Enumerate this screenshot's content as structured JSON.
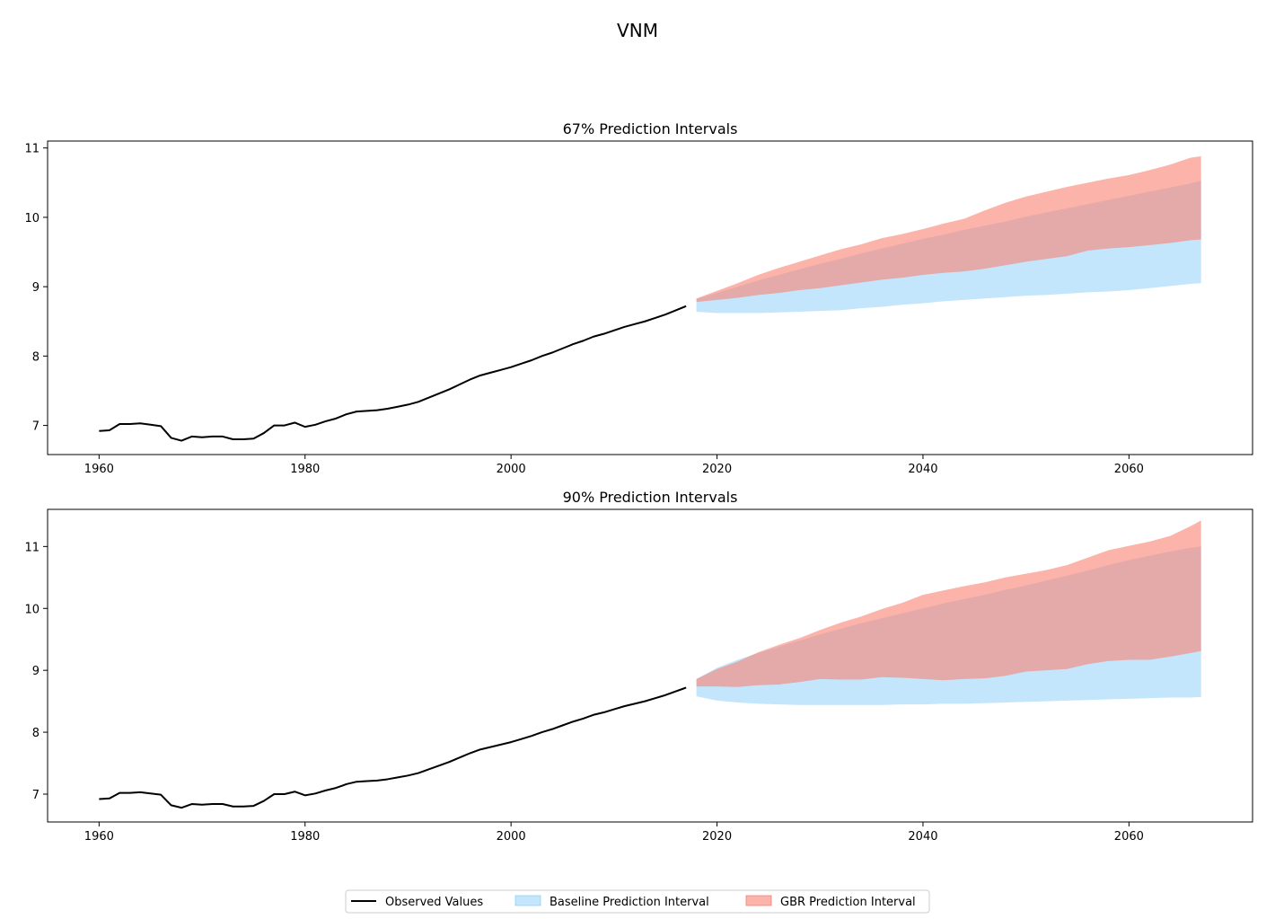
{
  "figure": {
    "title": "VNM",
    "legend": {
      "placement": "bottom-center",
      "entries": [
        {
          "label": "Observed Values",
          "kind": "line",
          "color": "#000000"
        },
        {
          "label": "Baseline Prediction Interval",
          "kind": "patch",
          "color": "#87CEFA"
        },
        {
          "label": "GBR Prediction Interval",
          "kind": "patch",
          "color": "#FA8072"
        }
      ]
    }
  },
  "chart_data": [
    {
      "type": "area",
      "title": "67% Prediction Intervals",
      "xlabel": "",
      "ylabel": "",
      "xlim": [
        1955,
        2072
      ],
      "ylim": [
        6.58,
        11.1
      ],
      "xticks": [
        1960,
        1980,
        2000,
        2020,
        2040,
        2060
      ],
      "yticks": [
        7,
        8,
        9,
        10,
        11
      ],
      "grid": false,
      "series": [
        {
          "name": "Observed Values",
          "kind": "line",
          "color": "#000000",
          "x": [
            1960,
            1961,
            1962,
            1963,
            1964,
            1965,
            1966,
            1967,
            1968,
            1969,
            1970,
            1971,
            1972,
            1973,
            1974,
            1975,
            1976,
            1977,
            1978,
            1979,
            1980,
            1981,
            1982,
            1983,
            1984,
            1985,
            1986,
            1987,
            1988,
            1989,
            1990,
            1991,
            1992,
            1993,
            1994,
            1995,
            1996,
            1997,
            1998,
            1999,
            2000,
            2001,
            2002,
            2003,
            2004,
            2005,
            2006,
            2007,
            2008,
            2009,
            2010,
            2011,
            2012,
            2013,
            2014,
            2015,
            2016,
            2017
          ],
          "y": [
            6.92,
            6.93,
            7.02,
            7.02,
            7.03,
            7.01,
            6.99,
            6.82,
            6.78,
            6.84,
            6.83,
            6.84,
            6.84,
            6.8,
            6.8,
            6.81,
            6.89,
            7.0,
            7.0,
            7.04,
            6.98,
            7.01,
            7.06,
            7.1,
            7.16,
            7.2,
            7.21,
            7.22,
            7.24,
            7.27,
            7.3,
            7.34,
            7.4,
            7.46,
            7.52,
            7.59,
            7.66,
            7.72,
            7.76,
            7.8,
            7.84,
            7.89,
            7.94,
            8.0,
            8.05,
            8.11,
            8.17,
            8.22,
            8.28,
            8.32,
            8.37,
            8.42,
            8.46,
            8.5,
            8.55,
            8.6,
            8.66,
            8.72
          ]
        },
        {
          "name": "Baseline Prediction Interval",
          "kind": "band",
          "color": "#87CEFA",
          "x": [
            2018,
            2020,
            2022,
            2024,
            2026,
            2028,
            2030,
            2032,
            2034,
            2036,
            2038,
            2040,
            2042,
            2044,
            2046,
            2048,
            2050,
            2052,
            2054,
            2056,
            2058,
            2060,
            2062,
            2064,
            2066,
            2067
          ],
          "lower": [
            8.64,
            8.62,
            8.62,
            8.62,
            8.63,
            8.64,
            8.65,
            8.66,
            8.69,
            8.71,
            8.74,
            8.76,
            8.79,
            8.81,
            8.83,
            8.85,
            8.87,
            8.88,
            8.9,
            8.92,
            8.93,
            8.95,
            8.98,
            9.01,
            9.04,
            9.05
          ],
          "upper": [
            8.82,
            8.91,
            9.0,
            9.09,
            9.17,
            9.25,
            9.33,
            9.4,
            9.48,
            9.55,
            9.62,
            9.69,
            9.75,
            9.82,
            9.88,
            9.94,
            10.01,
            10.07,
            10.13,
            10.19,
            10.25,
            10.31,
            10.37,
            10.43,
            10.49,
            10.53
          ]
        },
        {
          "name": "GBR Prediction Interval",
          "kind": "band",
          "color": "#FA8072",
          "x": [
            2018,
            2020,
            2022,
            2024,
            2026,
            2028,
            2030,
            2032,
            2034,
            2036,
            2038,
            2040,
            2042,
            2044,
            2046,
            2048,
            2050,
            2052,
            2054,
            2056,
            2058,
            2060,
            2062,
            2064,
            2066,
            2067
          ],
          "lower": [
            8.78,
            8.81,
            8.84,
            8.88,
            8.91,
            8.95,
            8.98,
            9.02,
            9.06,
            9.1,
            9.13,
            9.17,
            9.2,
            9.22,
            9.26,
            9.31,
            9.36,
            9.4,
            9.44,
            9.52,
            9.55,
            9.57,
            9.6,
            9.63,
            9.67,
            9.68
          ],
          "upper": [
            8.83,
            8.94,
            9.05,
            9.17,
            9.27,
            9.36,
            9.45,
            9.54,
            9.61,
            9.7,
            9.76,
            9.83,
            9.91,
            9.98,
            10.1,
            10.21,
            10.3,
            10.37,
            10.44,
            10.5,
            10.56,
            10.61,
            10.68,
            10.76,
            10.86,
            10.88
          ]
        }
      ]
    },
    {
      "type": "area",
      "title": "90% Prediction Intervals",
      "xlabel": "",
      "ylabel": "",
      "xlim": [
        1955,
        2072
      ],
      "ylim": [
        6.55,
        11.6
      ],
      "xticks": [
        1960,
        1980,
        2000,
        2020,
        2040,
        2060
      ],
      "yticks": [
        7,
        8,
        9,
        10,
        11
      ],
      "grid": false,
      "series": [
        {
          "name": "Observed Values",
          "kind": "line",
          "color": "#000000",
          "x": [
            1960,
            1961,
            1962,
            1963,
            1964,
            1965,
            1966,
            1967,
            1968,
            1969,
            1970,
            1971,
            1972,
            1973,
            1974,
            1975,
            1976,
            1977,
            1978,
            1979,
            1980,
            1981,
            1982,
            1983,
            1984,
            1985,
            1986,
            1987,
            1988,
            1989,
            1990,
            1991,
            1992,
            1993,
            1994,
            1995,
            1996,
            1997,
            1998,
            1999,
            2000,
            2001,
            2002,
            2003,
            2004,
            2005,
            2006,
            2007,
            2008,
            2009,
            2010,
            2011,
            2012,
            2013,
            2014,
            2015,
            2016,
            2017
          ],
          "y": [
            6.92,
            6.93,
            7.02,
            7.02,
            7.03,
            7.01,
            6.99,
            6.82,
            6.78,
            6.84,
            6.83,
            6.84,
            6.84,
            6.8,
            6.8,
            6.81,
            6.89,
            7.0,
            7.0,
            7.04,
            6.98,
            7.01,
            7.06,
            7.1,
            7.16,
            7.2,
            7.21,
            7.22,
            7.24,
            7.27,
            7.3,
            7.34,
            7.4,
            7.46,
            7.52,
            7.59,
            7.66,
            7.72,
            7.76,
            7.8,
            7.84,
            7.89,
            7.94,
            8.0,
            8.05,
            8.11,
            8.17,
            8.22,
            8.28,
            8.32,
            8.37,
            8.42,
            8.46,
            8.5,
            8.55,
            8.6,
            8.66,
            8.72
          ]
        },
        {
          "name": "Baseline Prediction Interval",
          "kind": "band",
          "color": "#87CEFA",
          "x": [
            2018,
            2020,
            2022,
            2024,
            2026,
            2028,
            2030,
            2032,
            2034,
            2036,
            2038,
            2040,
            2042,
            2044,
            2046,
            2048,
            2050,
            2052,
            2054,
            2056,
            2058,
            2060,
            2062,
            2064,
            2066,
            2067
          ],
          "lower": [
            8.58,
            8.51,
            8.48,
            8.46,
            8.45,
            8.44,
            8.44,
            8.44,
            8.44,
            8.44,
            8.45,
            8.45,
            8.46,
            8.46,
            8.47,
            8.48,
            8.49,
            8.5,
            8.51,
            8.52,
            8.53,
            8.54,
            8.55,
            8.56,
            8.56,
            8.57
          ],
          "upper": [
            8.86,
            9.04,
            9.17,
            9.28,
            9.38,
            9.48,
            9.58,
            9.67,
            9.76,
            9.84,
            9.92,
            10.0,
            10.08,
            10.15,
            10.22,
            10.3,
            10.37,
            10.45,
            10.53,
            10.61,
            10.7,
            10.78,
            10.85,
            10.92,
            10.98,
            11.0
          ]
        },
        {
          "name": "GBR Prediction Interval",
          "kind": "band",
          "color": "#FA8072",
          "x": [
            2018,
            2020,
            2022,
            2024,
            2026,
            2028,
            2030,
            2032,
            2034,
            2036,
            2038,
            2040,
            2042,
            2044,
            2046,
            2048,
            2050,
            2052,
            2054,
            2056,
            2058,
            2060,
            2062,
            2064,
            2066,
            2067
          ],
          "lower": [
            8.74,
            8.74,
            8.73,
            8.76,
            8.77,
            8.81,
            8.86,
            8.85,
            8.85,
            8.89,
            8.88,
            8.86,
            8.84,
            8.86,
            8.87,
            8.91,
            8.98,
            9.0,
            9.02,
            9.1,
            9.15,
            9.17,
            9.17,
            9.22,
            9.28,
            9.31
          ],
          "upper": [
            8.86,
            9.02,
            9.14,
            9.29,
            9.41,
            9.52,
            9.65,
            9.77,
            9.87,
            9.99,
            10.09,
            10.22,
            10.29,
            10.36,
            10.42,
            10.5,
            10.56,
            10.62,
            10.7,
            10.82,
            10.94,
            11.01,
            11.08,
            11.17,
            11.33,
            11.42
          ]
        }
      ]
    }
  ]
}
